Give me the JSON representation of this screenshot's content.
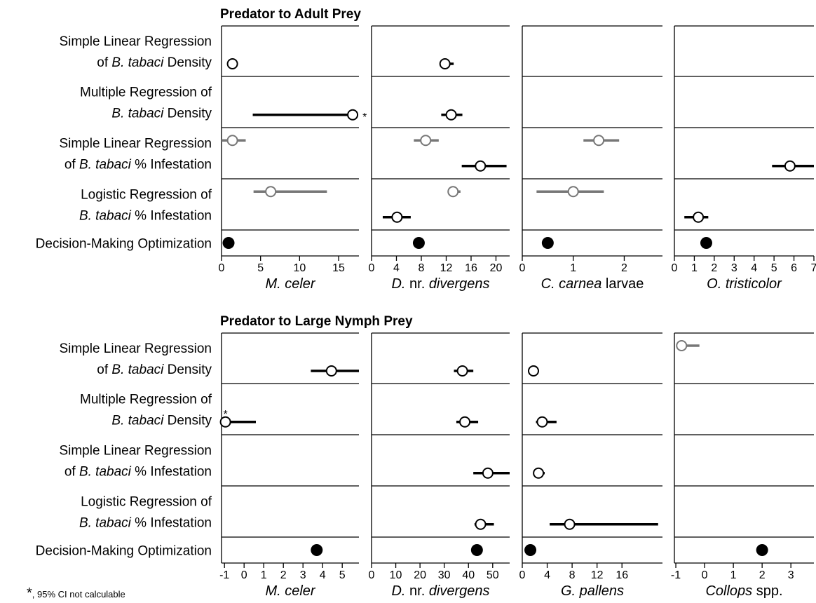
{
  "row_labels": [
    [
      [
        {
          "text": "Simple Linear Regression"
        }
      ],
      [
        {
          "text": "of "
        },
        {
          "text": "B. tabaci",
          "italic": true
        },
        {
          "text": " Density"
        }
      ]
    ],
    [
      [
        {
          "text": "Multiple Regression of"
        }
      ],
      [
        {
          "text": "B. tabaci",
          "italic": true
        },
        {
          "text": " Density"
        }
      ]
    ],
    [
      [
        {
          "text": "Simple Linear Regression"
        }
      ],
      [
        {
          "text": "of "
        },
        {
          "text": "B. tabaci",
          "italic": true
        },
        {
          "text": " % Infestation"
        }
      ]
    ],
    [
      [
        {
          "text": "Logistic Regression of"
        }
      ],
      [
        {
          "text": "B. tabaci",
          "italic": true
        },
        {
          "text": " % Infestation"
        }
      ]
    ],
    [
      [
        {
          "text": "Decision-Making Optimization"
        }
      ]
    ]
  ],
  "sections": [
    {
      "title": "Predator to Adult Prey",
      "chart_data": [
        {
          "type": "forest",
          "xlabel": [
            {
              "text": "M. celer",
              "italic": true
            }
          ],
          "xlim": [
            0,
            17.6
          ],
          "xticks": [
            0,
            5,
            10,
            15
          ],
          "rows": [
            [
              {
                "value": 1.4,
                "low": 1.0,
                "high": 1.8,
                "color": "#000000",
                "marker": "open"
              }
            ],
            [
              {
                "value": 16.8,
                "low": 4.0,
                "high": 17.0,
                "color": "#000000",
                "marker": "open",
                "note": "*"
              }
            ],
            [
              {
                "value": 1.4,
                "low": 0,
                "high": 3.1,
                "color": "#777777",
                "marker": "open"
              }
            ],
            [
              {
                "value": 6.3,
                "low": 4.1,
                "high": 13.5,
                "color": "#777777",
                "marker": "open"
              }
            ],
            [
              {
                "value": 0.9,
                "color": "#000000",
                "marker": "filled"
              }
            ]
          ]
        },
        {
          "type": "forest",
          "xlabel": [
            {
              "text": "D.",
              "italic": true
            },
            {
              "text": " nr. "
            },
            {
              "text": "divergens",
              "italic": true
            }
          ],
          "xlim": [
            0,
            22.2
          ],
          "xticks": [
            0,
            4,
            8,
            12,
            16,
            20
          ],
          "rows": [
            [
              {
                "value": 11.8,
                "low": 11.0,
                "high": 13.2,
                "color": "#000000",
                "marker": "open"
              }
            ],
            [
              {
                "value": 12.8,
                "low": 11.2,
                "high": 14.6,
                "color": "#000000",
                "marker": "open"
              }
            ],
            [
              {
                "value": 8.7,
                "low": 6.8,
                "high": 10.8,
                "color": "#777777",
                "marker": "open"
              },
              {
                "value": 17.5,
                "low": 14.5,
                "high": 21.7,
                "color": "#000000",
                "marker": "open"
              }
            ],
            [
              {
                "value": 13.1,
                "low": 12.4,
                "high": 14.3,
                "color": "#777777",
                "marker": "open"
              },
              {
                "value": 4.1,
                "low": 1.8,
                "high": 6.3,
                "color": "#000000",
                "marker": "open"
              }
            ],
            [
              {
                "value": 7.6,
                "color": "#000000",
                "marker": "filled"
              }
            ]
          ]
        },
        {
          "type": "forest",
          "xlabel": [
            {
              "text": "C. carnea",
              "italic": true
            },
            {
              "text": " larvae"
            }
          ],
          "xlim": [
            0,
            2.75
          ],
          "xticks": [
            0,
            1,
            2
          ],
          "rows": [
            [],
            [],
            [
              {
                "value": 1.5,
                "low": 1.2,
                "high": 1.9,
                "color": "#777777",
                "marker": "open"
              }
            ],
            [
              {
                "value": 1.0,
                "low": 0.28,
                "high": 1.6,
                "color": "#777777",
                "marker": "open"
              }
            ],
            [
              {
                "value": 0.5,
                "color": "#000000",
                "marker": "filled"
              }
            ]
          ]
        },
        {
          "type": "forest",
          "xlabel": [
            {
              "text": "O. tristicolor",
              "italic": true
            }
          ],
          "xlim": [
            0,
            7
          ],
          "xticks": [
            0,
            1,
            2,
            3,
            4,
            5,
            6,
            7
          ],
          "rows": [
            [],
            [],
            [
              {
                "value": 5.8,
                "low": 4.9,
                "high": 7.0,
                "color": "#000000",
                "marker": "open"
              }
            ],
            [
              {
                "value": 1.2,
                "low": 0.5,
                "high": 1.7,
                "color": "#000000",
                "marker": "open"
              }
            ],
            [
              {
                "value": 1.6,
                "color": "#000000",
                "marker": "filled"
              }
            ]
          ]
        }
      ]
    },
    {
      "title": "Predator to Large Nymph Prey",
      "chart_data": [
        {
          "type": "forest",
          "xlabel": [
            {
              "text": "M. celer",
              "italic": true
            }
          ],
          "xlim": [
            -1.15,
            5.85
          ],
          "xticks": [
            -1,
            0,
            1,
            2,
            3,
            4,
            5
          ],
          "rows": [
            [
              {
                "value": 4.45,
                "low": 3.4,
                "high": 5.85,
                "color": "#000000",
                "marker": "open"
              }
            ],
            [
              {
                "value": -0.95,
                "low": -0.95,
                "high": 0.6,
                "color": "#000000",
                "marker": "open",
                "note": "*"
              }
            ],
            [],
            [],
            [
              {
                "value": 3.7,
                "color": "#000000",
                "marker": "filled"
              }
            ]
          ]
        },
        {
          "type": "forest",
          "xlabel": [
            {
              "text": "D.",
              "italic": true
            },
            {
              "text": " nr. "
            },
            {
              "text": "divergens",
              "italic": true
            }
          ],
          "xlim": [
            0,
            57
          ],
          "xticks": [
            0,
            10,
            20,
            30,
            40,
            50
          ],
          "rows": [
            [
              {
                "value": 37.5,
                "low": 34,
                "high": 42,
                "color": "#000000",
                "marker": "open"
              }
            ],
            [
              {
                "value": 38.5,
                "low": 35,
                "high": 44,
                "color": "#000000",
                "marker": "open"
              }
            ],
            [
              {
                "value": 48,
                "low": 42,
                "high": 57,
                "color": "#000000",
                "marker": "open"
              }
            ],
            [
              {
                "value": 45,
                "low": 42.5,
                "high": 50.5,
                "color": "#000000",
                "marker": "open"
              }
            ],
            [
              {
                "value": 43.5,
                "color": "#000000",
                "marker": "filled"
              }
            ]
          ]
        },
        {
          "type": "forest",
          "xlabel": [
            {
              "text": "G. pallens",
              "italic": true
            }
          ],
          "xlim": [
            0,
            22.5
          ],
          "xticks": [
            0,
            4,
            8,
            12,
            16
          ],
          "rows": [
            [
              {
                "value": 1.8,
                "low": 1.4,
                "high": 2.3,
                "color": "#000000",
                "marker": "open"
              }
            ],
            [
              {
                "value": 3.2,
                "low": 2.2,
                "high": 5.5,
                "color": "#000000",
                "marker": "open"
              }
            ],
            [
              {
                "value": 2.6,
                "low": 1.8,
                "high": 3.6,
                "color": "#000000",
                "marker": "open"
              }
            ],
            [
              {
                "value": 7.6,
                "low": 4.4,
                "high": 21.8,
                "color": "#000000",
                "marker": "open"
              }
            ],
            [
              {
                "value": 1.3,
                "color": "#000000",
                "marker": "filled"
              }
            ]
          ]
        },
        {
          "type": "forest",
          "xlabel": [
            {
              "text": "Collops",
              "italic": true
            },
            {
              "text": " spp."
            }
          ],
          "xlim": [
            -1.05,
            3.8
          ],
          "xticks": [
            -1,
            0,
            1,
            2,
            3
          ],
          "rows": [
            [
              {
                "value": -0.8,
                "low": -0.95,
                "high": -0.18,
                "color": "#777777",
                "marker": "open"
              }
            ],
            [],
            [],
            [],
            [
              {
                "value": 2.0,
                "color": "#000000",
                "marker": "filled"
              }
            ]
          ]
        }
      ]
    }
  ],
  "footnote": [
    {
      "text": "*",
      "superscript": true
    },
    {
      "text": ", 95% CI not calculable"
    }
  ]
}
